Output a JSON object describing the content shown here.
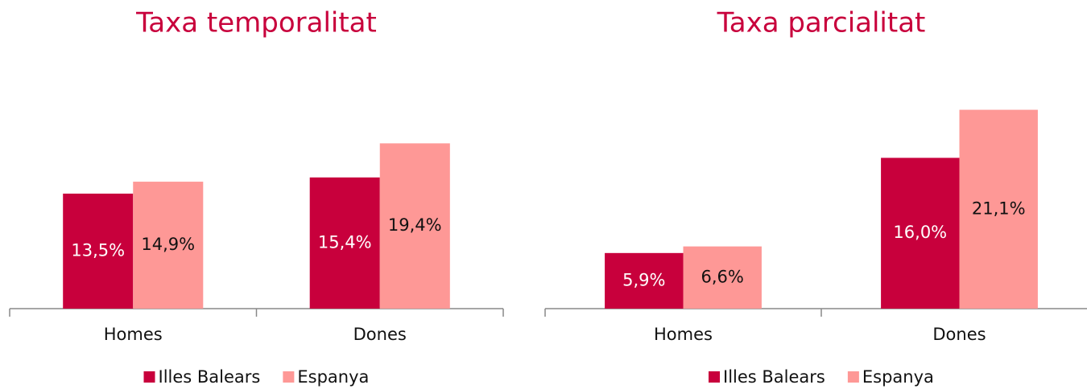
{
  "chart_data": [
    {
      "type": "bar",
      "title": "Taxa temporalitat",
      "categories": [
        "Homes",
        "Dones"
      ],
      "series": [
        {
          "name": "Illes Balears",
          "color": "#c8003c",
          "values": [
            13.5,
            15.4
          ],
          "value_labels": [
            "13,5%",
            "15,4%"
          ]
        },
        {
          "name": "Espanya",
          "color": "#fe9896",
          "values": [
            14.9,
            19.4
          ],
          "value_labels": [
            "14,9%",
            "19,4%"
          ]
        }
      ],
      "ylim": [
        0,
        25
      ]
    },
    {
      "type": "bar",
      "title": "Taxa parcialitat",
      "categories": [
        "Homes",
        "Dones"
      ],
      "series": [
        {
          "name": "Illes Balears",
          "color": "#c8003c",
          "values": [
            5.9,
            16.0
          ],
          "value_labels": [
            "5,9%",
            "16,0%"
          ]
        },
        {
          "name": "Espanya",
          "color": "#fe9896",
          "values": [
            6.6,
            21.1
          ],
          "value_labels": [
            "6,6%",
            "21,1%"
          ]
        }
      ],
      "ylim": [
        0,
        22.6
      ]
    }
  ]
}
